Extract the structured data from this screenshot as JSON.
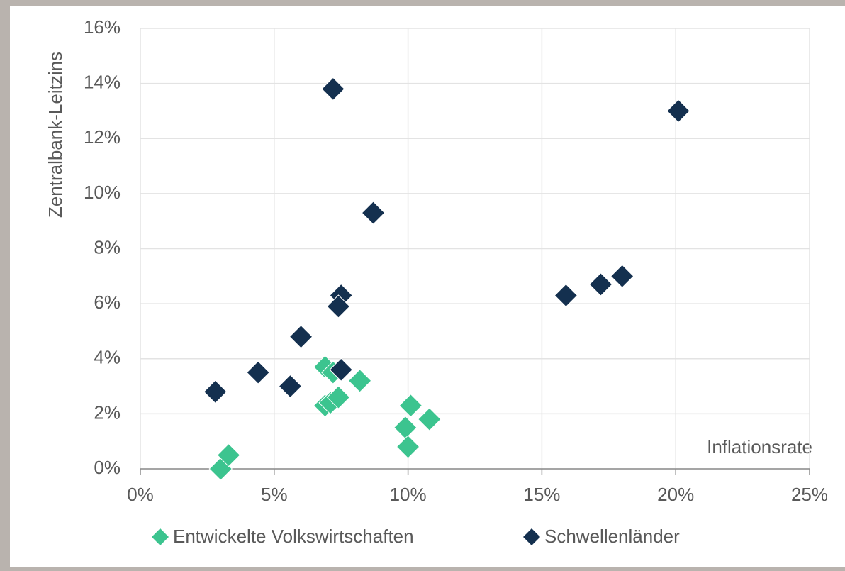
{
  "chart_data": {
    "type": "scatter",
    "xlabel": "Inflationsrate",
    "ylabel": "Zentralbank-Leitzins",
    "xlim": [
      0,
      25
    ],
    "ylim": [
      0,
      16
    ],
    "xticks": [
      {
        "value": 0,
        "label": "0%"
      },
      {
        "value": 5,
        "label": "5%"
      },
      {
        "value": 10,
        "label": "10%"
      },
      {
        "value": 15,
        "label": "15%"
      },
      {
        "value": 20,
        "label": "20%"
      },
      {
        "value": 25,
        "label": "25%"
      }
    ],
    "yticks": [
      {
        "value": 0,
        "label": "0%"
      },
      {
        "value": 2,
        "label": "2%"
      },
      {
        "value": 4,
        "label": "4%"
      },
      {
        "value": 6,
        "label": "6%"
      },
      {
        "value": 8,
        "label": "8%"
      },
      {
        "value": 10,
        "label": "10%"
      },
      {
        "value": 12,
        "label": "12%"
      },
      {
        "value": 14,
        "label": "14%"
      },
      {
        "value": 16,
        "label": "16%"
      }
    ],
    "grid": true,
    "legend": "bottom",
    "series": [
      {
        "name": "Entwickelte Volkswirtschaften",
        "color": "#3cc48f",
        "x": [
          3.0,
          3.3,
          6.9,
          7.2,
          6.9,
          7.1,
          7.4,
          8.2,
          10.1,
          9.9,
          10.8,
          10.0
        ],
        "y": [
          0.0,
          0.5,
          3.7,
          3.5,
          2.3,
          2.4,
          2.6,
          3.2,
          2.3,
          1.5,
          1.8,
          0.8
        ]
      },
      {
        "name": "Schwellenländer",
        "color": "#14304f",
        "x": [
          2.8,
          4.4,
          5.6,
          6.0,
          7.2,
          7.5,
          7.4,
          7.5,
          8.7,
          15.9,
          17.2,
          18.0,
          20.1
        ],
        "y": [
          2.8,
          3.5,
          3.0,
          4.8,
          13.8,
          6.3,
          5.9,
          3.6,
          9.3,
          6.3,
          6.7,
          7.0,
          13.0
        ]
      }
    ]
  }
}
